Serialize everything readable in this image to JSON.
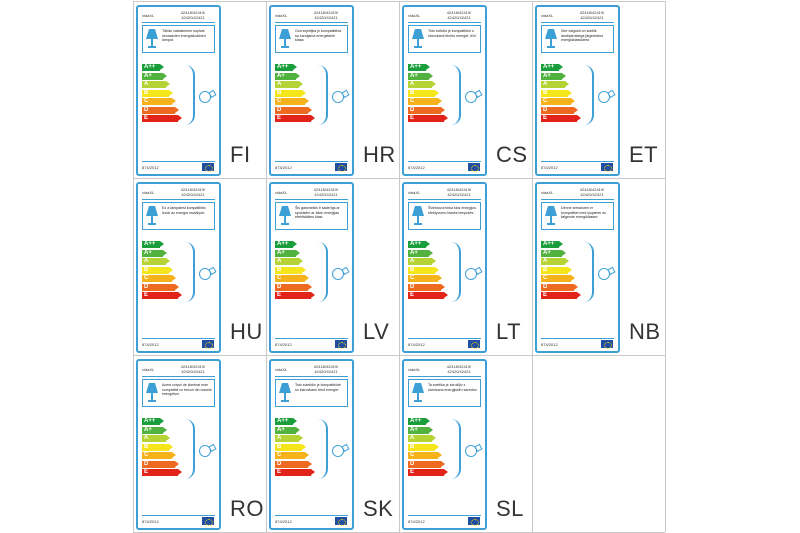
{
  "brand": "vidaXL",
  "model_numbers": "42418/42419/ 42420/42421",
  "regulation": "874/2012",
  "energy_classes": [
    {
      "label": "A++",
      "color": "#1a9e3b"
    },
    {
      "label": "A+",
      "color": "#52b23f"
    },
    {
      "label": "A",
      "color": "#b5d334"
    },
    {
      "label": "B",
      "color": "#f4e61a"
    },
    {
      "label": "C",
      "color": "#f6b21b"
    },
    {
      "label": "D",
      "color": "#ee6a20"
    },
    {
      "label": "E",
      "color": "#e2231a"
    }
  ],
  "accent_color": "#3ca0d6",
  "labels": [
    {
      "lang": "FI",
      "text": "Tähän valaisimeen sopivat seuraavien energialuokkien lamput."
    },
    {
      "lang": "HR",
      "text": "Ova svjetiljka je kompatibilna sa žaruljama energetskih klasa:"
    },
    {
      "lang": "CS",
      "text": "Toto svítidlo je kompatibilní s žárovkami těchto energet. tříd:"
    },
    {
      "lang": "ET",
      "text": "See valgusti on sobilik lambipirnidega järgmistest energiaklassidest:"
    },
    {
      "lang": "HU",
      "text": "Ez a lámpatest kompatibilis izzók az energia osztályok:"
    },
    {
      "lang": "LV",
      "text": "Šis gaismeklis ir saderīgs ar spuldzēm ar šādu enerģijas efektivitātes klasi:"
    },
    {
      "lang": "LT",
      "text": "Šviestuvui tinka šios energijos efektyvumo klasės lemputės:"
    },
    {
      "lang": "NB",
      "text": "Denne armaturen er kompatibel med lyspærer av følgende energiklasser:"
    },
    {
      "lang": "RO",
      "text": "Acest corpul de iluminat este compatibil cu becuri din clasele energetice:"
    },
    {
      "lang": "SK",
      "text": "Toto svietidlo je kompatibilné so žiarovkami tried energie:"
    },
    {
      "lang": "SL",
      "text": "Ta svetilka je združljiv z žarnicami energijskih razredov:"
    }
  ]
}
